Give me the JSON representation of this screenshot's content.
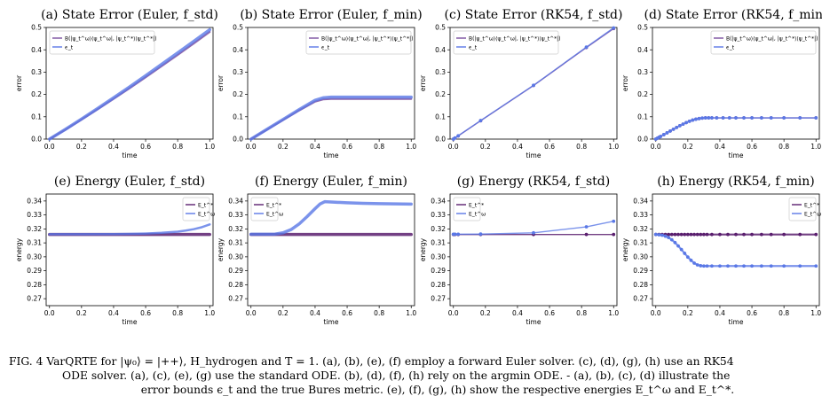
{
  "caption": {
    "lines": [
      "FIG. 4 VarQRTE for |ψ₀⟩ = |++⟩, H_hydrogen and T = 1. (a), (b), (e), (f) employ a forward Euler solver. (c), (d), (g), (h) use an RK54",
      "ODE solver. (a), (c), (e), (g) use the standard ODE. (b), (d), (f), (h) rely on the argmin ODE. - (a), (b), (c), (d) illustrate the",
      "error bounds ϵ_t and the true Bures metric. (e), (f), (g), (h) show the respective energies E_t^ω and E_t^*."
    ]
  },
  "colors": {
    "bures": "#7b4fa0",
    "bound": "#5a78e6",
    "exact": "#5a1f6e",
    "variational": "#5a78e6"
  },
  "chart_data": [
    {
      "type": "line",
      "title": "(a) State Error (Euler, f_std)",
      "xlabel": "time",
      "ylabel": "error",
      "xlim": [
        0,
        1
      ],
      "ylim": [
        0,
        0.5
      ],
      "xticks": [
        "0.0",
        "0.2",
        "0.4",
        "0.6",
        "0.8",
        "1.0"
      ],
      "yticks": [
        "0.0",
        "0.1",
        "0.2",
        "0.3",
        "0.4",
        "0.5"
      ],
      "legend": {
        "position": "top-left",
        "entries": [
          "B(|ψ_t^ω⟩⟨ψ_t^ω|, |ψ_t^*⟩⟨ψ_t^*|)",
          "ϵ_t"
        ]
      },
      "series": [
        {
          "x": [
            0,
            0.1,
            0.2,
            0.3,
            0.4,
            0.5,
            0.6,
            0.7,
            0.8,
            0.9,
            1.0
          ],
          "values": [
            0,
            0.042,
            0.087,
            0.133,
            0.18,
            0.228,
            0.277,
            0.327,
            0.377,
            0.428,
            0.48
          ],
          "width": 2.2,
          "markers": false
        },
        {
          "x": [
            0,
            0.1,
            0.2,
            0.3,
            0.4,
            0.5,
            0.6,
            0.7,
            0.8,
            0.9,
            1.0
          ],
          "values": [
            0,
            0.044,
            0.09,
            0.137,
            0.185,
            0.234,
            0.284,
            0.335,
            0.386,
            0.438,
            0.49
          ],
          "width": 3.5,
          "markers": false
        }
      ]
    },
    {
      "type": "line",
      "title": "(b) State Error (Euler, f_min)",
      "xlabel": "time",
      "ylabel": "error",
      "xlim": [
        0,
        1
      ],
      "ylim": [
        0,
        0.5
      ],
      "xticks": [
        "0.0",
        "0.2",
        "0.4",
        "0.6",
        "0.8",
        "1.0"
      ],
      "yticks": [
        "0.0",
        "0.1",
        "0.2",
        "0.3",
        "0.4",
        "0.5"
      ],
      "legend": {
        "position": "top-right",
        "entries": [
          "B(|ψ_t^ω⟩⟨ψ_t^ω|, |ψ_t^*⟩⟨ψ_t^*|)",
          "ϵ_t"
        ]
      },
      "series": [
        {
          "x": [
            0,
            0.1,
            0.2,
            0.3,
            0.4,
            0.45,
            0.5,
            0.6,
            0.8,
            1.0
          ],
          "values": [
            0,
            0.042,
            0.085,
            0.128,
            0.168,
            0.178,
            0.18,
            0.18,
            0.18,
            0.18
          ],
          "width": 2.2,
          "markers": false
        },
        {
          "x": [
            0,
            0.1,
            0.2,
            0.3,
            0.4,
            0.45,
            0.5,
            0.6,
            0.8,
            1.0
          ],
          "values": [
            0,
            0.044,
            0.088,
            0.132,
            0.174,
            0.185,
            0.188,
            0.188,
            0.188,
            0.188
          ],
          "width": 3.5,
          "markers": false
        }
      ]
    },
    {
      "type": "line",
      "title": "(c) State Error (RK54, f_std)",
      "xlabel": "time",
      "ylabel": "error",
      "xlim": [
        0,
        1
      ],
      "ylim": [
        0,
        0.5
      ],
      "xticks": [
        "0.0",
        "0.2",
        "0.4",
        "0.6",
        "0.8",
        "1.0"
      ],
      "yticks": [
        "0.0",
        "0.1",
        "0.2",
        "0.3",
        "0.4",
        "0.5"
      ],
      "legend": {
        "position": "top-left",
        "entries": [
          "B(|ψ_t^ω⟩⟨ψ_t^ω|, |ψ_t^*⟩⟨ψ_t^*|)",
          "ϵ_t"
        ]
      },
      "series": [
        {
          "x": [
            0,
            0.01,
            0.03,
            0.17,
            0.5,
            0.83,
            1.0
          ],
          "values": [
            0,
            0.005,
            0.014,
            0.082,
            0.24,
            0.41,
            0.495
          ],
          "width": 1.4,
          "markers": true
        },
        {
          "x": [
            0,
            0.01,
            0.03,
            0.17,
            0.5,
            0.83,
            1.0
          ],
          "values": [
            0,
            0.005,
            0.015,
            0.083,
            0.241,
            0.412,
            0.498
          ],
          "width": 1.4,
          "markers": true
        }
      ]
    },
    {
      "type": "line",
      "title": "(d) State Error (RK54, f_min)",
      "xlabel": "time",
      "ylabel": "error",
      "xlim": [
        0,
        1
      ],
      "ylim": [
        0,
        0.5
      ],
      "xticks": [
        "0.0",
        "0.2",
        "0.4",
        "0.6",
        "0.8",
        "1.0"
      ],
      "yticks": [
        "0.0",
        "0.1",
        "0.2",
        "0.3",
        "0.4",
        "0.5"
      ],
      "legend": {
        "position": "top-right",
        "entries": [
          "B(|ψ_t^ω⟩⟨ψ_t^ω|, |ψ_t^*⟩⟨ψ_t^*|)",
          "ϵ_t"
        ]
      },
      "series": [
        {
          "x": [
            0,
            0.01,
            0.02,
            0.03,
            0.05,
            0.07,
            0.09,
            0.11,
            0.13,
            0.15,
            0.17,
            0.19,
            0.21,
            0.23,
            0.25,
            0.27,
            0.29,
            0.31,
            0.33,
            0.35,
            0.38,
            0.42,
            0.46,
            0.5,
            0.55,
            0.6,
            0.66,
            0.72,
            0.8,
            0.9,
            1.0
          ],
          "values": [
            0,
            0.004,
            0.008,
            0.012,
            0.02,
            0.028,
            0.036,
            0.044,
            0.052,
            0.06,
            0.067,
            0.074,
            0.08,
            0.085,
            0.089,
            0.092,
            0.094,
            0.095,
            0.095,
            0.095,
            0.095,
            0.095,
            0.095,
            0.095,
            0.095,
            0.095,
            0.095,
            0.095,
            0.095,
            0.095,
            0.095
          ],
          "width": 1.4,
          "markers": true
        },
        {
          "x": [
            0,
            0.01,
            0.02,
            0.03,
            0.05,
            0.07,
            0.09,
            0.11,
            0.13,
            0.15,
            0.17,
            0.19,
            0.21,
            0.23,
            0.25,
            0.27,
            0.29,
            0.31,
            0.33,
            0.35,
            0.38,
            0.42,
            0.46,
            0.5,
            0.55,
            0.6,
            0.66,
            0.72,
            0.8,
            0.9,
            1.0
          ],
          "values": [
            0,
            0.004,
            0.008,
            0.012,
            0.02,
            0.028,
            0.036,
            0.044,
            0.052,
            0.06,
            0.067,
            0.074,
            0.08,
            0.085,
            0.089,
            0.092,
            0.094,
            0.095,
            0.095,
            0.095,
            0.095,
            0.095,
            0.095,
            0.095,
            0.095,
            0.095,
            0.095,
            0.095,
            0.095,
            0.095,
            0.095
          ],
          "width": 1.4,
          "markers": true
        }
      ]
    },
    {
      "type": "line",
      "title": "(e) Energy (Euler, f_std)",
      "xlabel": "time",
      "ylabel": "energy",
      "xlim": [
        0,
        1
      ],
      "ylim": [
        0.265,
        0.345
      ],
      "xticks": [
        "0.0",
        "0.2",
        "0.4",
        "0.6",
        "0.8",
        "1.0"
      ],
      "yticks": [
        "0.27",
        "0.28",
        "0.29",
        "0.30",
        "0.31",
        "0.32",
        "0.33",
        "0.34"
      ],
      "legend": {
        "position": "top-right",
        "entries": [
          "E_t^*",
          "E_t^ω"
        ]
      },
      "series": [
        {
          "x": [
            0,
            0.2,
            0.4,
            0.6,
            0.8,
            1.0
          ],
          "values": [
            0.316,
            0.316,
            0.316,
            0.316,
            0.316,
            0.316
          ],
          "width": 3.5,
          "markers": false
        },
        {
          "x": [
            0,
            0.2,
            0.4,
            0.5,
            0.6,
            0.7,
            0.8,
            0.85,
            0.9,
            0.95,
            1.0
          ],
          "values": [
            0.3162,
            0.3162,
            0.3163,
            0.3164,
            0.3167,
            0.3172,
            0.318,
            0.3188,
            0.3198,
            0.3212,
            0.3232
          ],
          "width": 2.5,
          "markers": false
        }
      ]
    },
    {
      "type": "line",
      "title": "(f) Energy (Euler, f_min)",
      "xlabel": "time",
      "ylabel": "energy",
      "xlim": [
        0,
        1
      ],
      "ylim": [
        0.265,
        0.345
      ],
      "xticks": [
        "0.0",
        "0.2",
        "0.4",
        "0.6",
        "0.8",
        "1.0"
      ],
      "yticks": [
        "0.27",
        "0.28",
        "0.29",
        "0.30",
        "0.31",
        "0.32",
        "0.33",
        "0.34"
      ],
      "legend": {
        "position": "top-left",
        "entries": [
          "E_t^*",
          "E_t^ω"
        ]
      },
      "series": [
        {
          "x": [
            0,
            0.2,
            0.4,
            0.6,
            0.8,
            1.0
          ],
          "values": [
            0.316,
            0.316,
            0.316,
            0.316,
            0.316,
            0.316
          ],
          "width": 3.5,
          "markers": false
        },
        {
          "x": [
            0,
            0.15,
            0.2,
            0.25,
            0.3,
            0.35,
            0.4,
            0.43,
            0.46,
            0.5,
            0.6,
            0.7,
            0.8,
            0.9,
            1.0
          ],
          "values": [
            0.3162,
            0.3163,
            0.3172,
            0.3195,
            0.3235,
            0.3288,
            0.3345,
            0.3378,
            0.3395,
            0.3393,
            0.3387,
            0.3383,
            0.3381,
            0.3379,
            0.3378
          ],
          "width": 3.5,
          "markers": false
        }
      ]
    },
    {
      "type": "line",
      "title": "(g) Energy (RK54, f_std)",
      "xlabel": "time",
      "ylabel": "energy",
      "xlim": [
        0,
        1
      ],
      "ylim": [
        0.265,
        0.345
      ],
      "xticks": [
        "0.0",
        "0.2",
        "0.4",
        "0.6",
        "0.8",
        "1.0"
      ],
      "yticks": [
        "0.27",
        "0.28",
        "0.29",
        "0.30",
        "0.31",
        "0.32",
        "0.33",
        "0.34"
      ],
      "legend": {
        "position": "top-left",
        "entries": [
          "E_t^*",
          "E_t^ω"
        ]
      },
      "series": [
        {
          "x": [
            0,
            0.01,
            0.03,
            0.17,
            0.5,
            0.83,
            1.0
          ],
          "values": [
            0.316,
            0.316,
            0.316,
            0.316,
            0.316,
            0.316,
            0.316
          ],
          "width": 1.4,
          "markers": true
        },
        {
          "x": [
            0,
            0.01,
            0.03,
            0.17,
            0.5,
            0.83,
            1.0
          ],
          "values": [
            0.3162,
            0.3162,
            0.3162,
            0.3163,
            0.3172,
            0.3215,
            0.3255
          ],
          "width": 1.4,
          "markers": true
        }
      ]
    },
    {
      "type": "line",
      "title": "(h) Energy (RK54, f_min)",
      "xlabel": "time",
      "ylabel": "energy",
      "xlim": [
        0,
        1
      ],
      "ylim": [
        0.265,
        0.345
      ],
      "xticks": [
        "0.0",
        "0.2",
        "0.4",
        "0.6",
        "0.8",
        "1.0"
      ],
      "yticks": [
        "0.27",
        "0.28",
        "0.29",
        "0.30",
        "0.31",
        "0.32",
        "0.33",
        "0.34"
      ],
      "legend": {
        "position": "top-right",
        "entries": [
          "E_t^*",
          "E_t^ω"
        ]
      },
      "series": [
        {
          "x": [
            0,
            0.02,
            0.04,
            0.06,
            0.08,
            0.1,
            0.12,
            0.14,
            0.16,
            0.18,
            0.2,
            0.22,
            0.24,
            0.26,
            0.28,
            0.3,
            0.32,
            0.35,
            0.4,
            0.45,
            0.5,
            0.55,
            0.6,
            0.66,
            0.72,
            0.8,
            0.9,
            1.0
          ],
          "values": [
            0.316,
            0.316,
            0.316,
            0.316,
            0.316,
            0.316,
            0.316,
            0.316,
            0.316,
            0.316,
            0.316,
            0.316,
            0.316,
            0.316,
            0.316,
            0.316,
            0.316,
            0.316,
            0.316,
            0.316,
            0.316,
            0.316,
            0.316,
            0.316,
            0.316,
            0.316,
            0.316,
            0.316
          ],
          "width": 2.2,
          "markers": true
        },
        {
          "x": [
            0,
            0.02,
            0.04,
            0.06,
            0.08,
            0.1,
            0.12,
            0.14,
            0.16,
            0.18,
            0.2,
            0.22,
            0.24,
            0.26,
            0.28,
            0.3,
            0.32,
            0.35,
            0.4,
            0.45,
            0.5,
            0.55,
            0.6,
            0.66,
            0.72,
            0.8,
            0.9,
            1.0
          ],
          "values": [
            0.316,
            0.3158,
            0.3155,
            0.3148,
            0.3138,
            0.3122,
            0.3102,
            0.3078,
            0.3052,
            0.3025,
            0.2998,
            0.2975,
            0.2955,
            0.2942,
            0.2936,
            0.2934,
            0.2934,
            0.2934,
            0.2934,
            0.2934,
            0.2934,
            0.2934,
            0.2934,
            0.2934,
            0.2934,
            0.2934,
            0.2934,
            0.2934
          ],
          "width": 2.2,
          "markers": true
        }
      ]
    }
  ]
}
